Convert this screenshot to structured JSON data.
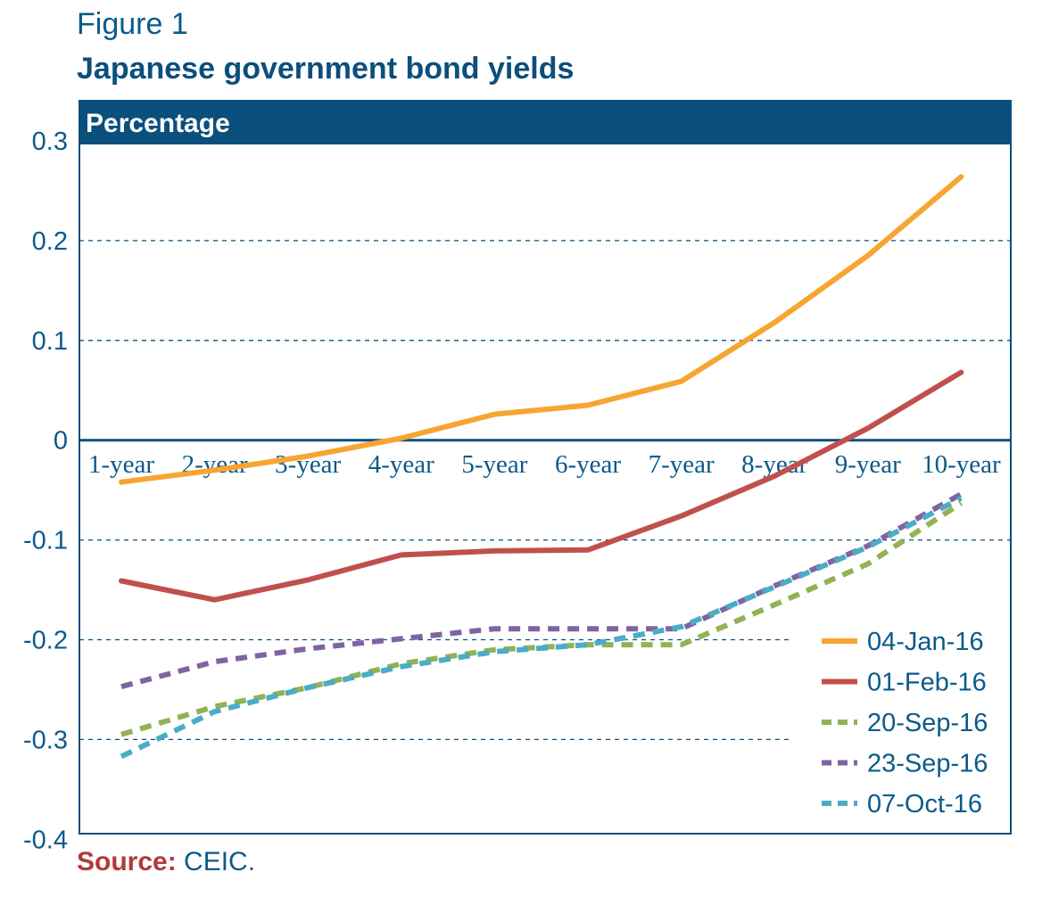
{
  "figure_label": "Figure 1",
  "source": {
    "label": "Source:",
    "text": " CEIC."
  },
  "chart_data": {
    "type": "line",
    "title": "Japanese government bond yields",
    "ylabel": "Percentage",
    "xlabel": "",
    "ylim": [
      -0.4,
      0.3
    ],
    "yticks": [
      "0.3",
      "0.2",
      "0.1",
      "0",
      "-0.1",
      "-0.2",
      "-0.3",
      "-0.4"
    ],
    "categories": [
      "1-year",
      "2-year",
      "3-year",
      "4-year",
      "5-year",
      "6-year",
      "7-year",
      "8-year",
      "9-year",
      "10-year"
    ],
    "grid": "dashed horizontal",
    "legend_position": "bottom-right",
    "colors": {
      "header": "#0b4f7c",
      "axis": "#0b4f7c",
      "text": "#0b5a8a",
      "source_label": "#b03a3a"
    },
    "series": [
      {
        "name": "04-Jan-16",
        "color": "#f7a532",
        "dashed": false,
        "values": [
          -0.042,
          -0.03,
          -0.016,
          0.002,
          0.026,
          0.035,
          0.059,
          0.118,
          0.185,
          0.264
        ]
      },
      {
        "name": "01-Feb-16",
        "color": "#c0504d",
        "dashed": false,
        "values": [
          -0.141,
          -0.16,
          -0.14,
          -0.115,
          -0.111,
          -0.11,
          -0.076,
          -0.036,
          0.012,
          0.068
        ]
      },
      {
        "name": "20-Sep-16",
        "color": "#92b255",
        "dashed": true,
        "values": [
          -0.295,
          -0.267,
          -0.248,
          -0.224,
          -0.21,
          -0.205,
          -0.205,
          -0.165,
          -0.124,
          -0.063
        ]
      },
      {
        "name": "23-Sep-16",
        "color": "#8064a2",
        "dashed": true,
        "values": [
          -0.247,
          -0.222,
          -0.209,
          -0.199,
          -0.189,
          -0.189,
          -0.189,
          -0.146,
          -0.106,
          -0.054
        ]
      },
      {
        "name": "07-Oct-16",
        "color": "#4bacc6",
        "dashed": true,
        "values": [
          -0.317,
          -0.272,
          -0.248,
          -0.227,
          -0.212,
          -0.205,
          -0.187,
          -0.147,
          -0.107,
          -0.058
        ]
      }
    ]
  }
}
